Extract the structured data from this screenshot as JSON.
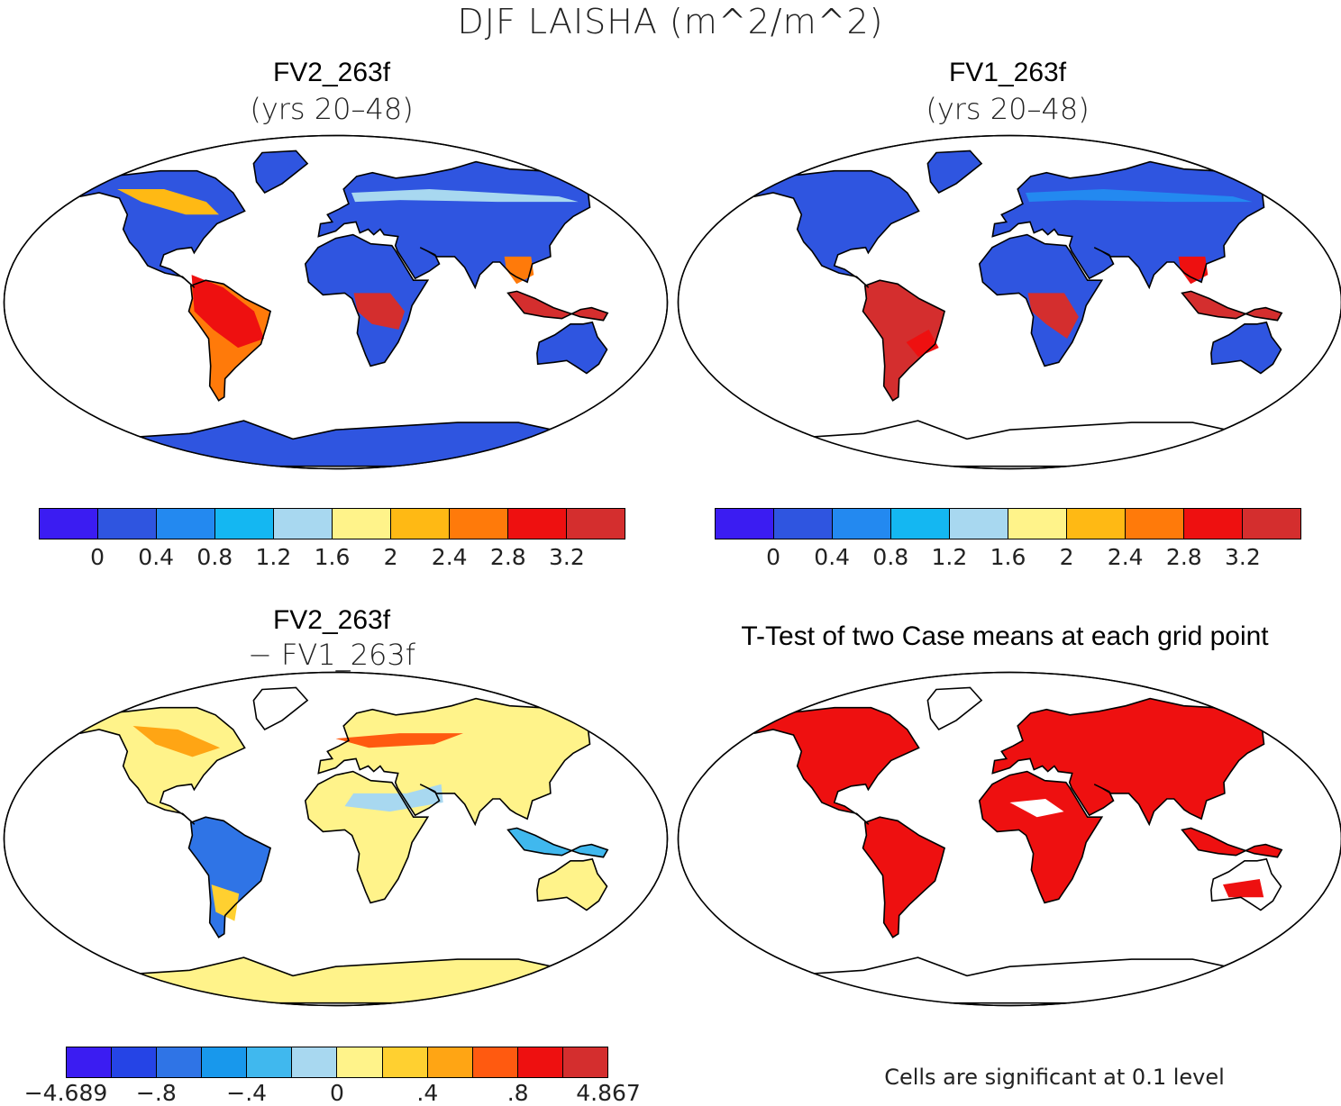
{
  "title": "DJF LAISHA (m^2/m^2)",
  "panels": [
    {
      "title": "FV2_263f",
      "subtitle": "(yrs 20–48)"
    },
    {
      "title": "FV1_263f",
      "subtitle": "(yrs 20–48)"
    },
    {
      "title": "FV2_263f",
      "subtitle": "− FV1_263f"
    },
    {
      "title": "T-Test of two Case means at each grid point",
      "subtitle": ""
    }
  ],
  "colorbar_levels": {
    "colors": [
      "#3b1cf2",
      "#2f55e0",
      "#2389f0",
      "#14b7f2",
      "#a8d8f0",
      "#fff38a",
      "#ffb914",
      "#ff7a0a",
      "#ee1010",
      "#d42e2e"
    ],
    "ticks": [
      "0",
      "0.4",
      "0.8",
      "1.2",
      "1.6",
      "2",
      "2.4",
      "2.8",
      "3.2"
    ]
  },
  "colorbar_diff": {
    "colors": [
      "#3b1cf2",
      "#2544e6",
      "#2f74e6",
      "#1898ec",
      "#40b8ee",
      "#a8d8f0",
      "#fff38a",
      "#ffd030",
      "#ffa514",
      "#ff5a10",
      "#ee1010",
      "#d42e2e"
    ],
    "ticks": [
      "−4.689",
      "−.8",
      "−.4",
      "0",
      ".4",
      ".8",
      "4.867"
    ]
  },
  "ttest_note": "Cells are significant at 0.1 level",
  "chart_data": [
    {
      "type": "heatmap",
      "title": "FV2_263f",
      "subtitle": "(yrs 20–48)",
      "clevels": [
        0,
        0.4,
        0.8,
        1.2,
        1.6,
        2,
        2.4,
        2.8,
        3.2
      ]
    },
    {
      "type": "heatmap",
      "title": "FV1_263f",
      "subtitle": "(yrs 20–48)",
      "clevels": [
        0,
        0.4,
        0.8,
        1.2,
        1.6,
        2,
        2.4,
        2.8,
        3.2
      ]
    },
    {
      "type": "heatmap",
      "title": "FV2_263f",
      "subtitle": "− FV1_263f",
      "clevels": [
        -4.689,
        -0.8,
        -0.4,
        0,
        0.4,
        0.8,
        4.867
      ]
    },
    {
      "type": "heatmap",
      "title": "T-Test of two Case means at each grid point",
      "note": "Cells are significant at 0.1 level"
    }
  ]
}
